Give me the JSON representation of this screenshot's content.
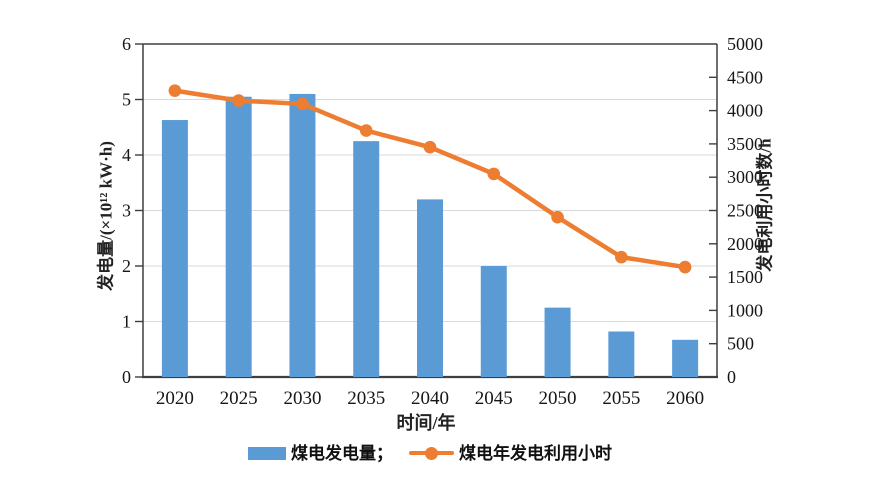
{
  "chart_data": {
    "type": "bar",
    "subtype": "combo-bar-line-dual-axis",
    "categories": [
      "2020",
      "2025",
      "2030",
      "2035",
      "2040",
      "2045",
      "2050",
      "2055",
      "2060"
    ],
    "series": [
      {
        "name": "煤电发电量",
        "type": "bar",
        "axis": "left",
        "color": "#5B9BD5",
        "values": [
          4.63,
          5.05,
          5.1,
          4.25,
          3.2,
          2.0,
          1.25,
          0.82,
          0.67
        ]
      },
      {
        "name": "煤电年发电利用小时",
        "type": "line",
        "axis": "right",
        "color": "#ED7D31",
        "values": [
          4300,
          4150,
          4100,
          3700,
          3450,
          3050,
          2400,
          1800,
          1650
        ]
      }
    ],
    "title": "",
    "xlabel": "时间/年",
    "left_axis": {
      "label": "发电量/(×10¹² kW·h)",
      "min": 0,
      "max": 6,
      "step": 1
    },
    "right_axis": {
      "label": "发电利用小时数/h",
      "min": 0,
      "max": 5000,
      "step": 500
    },
    "grid": "horizontal-at-left-axis-integers",
    "legend_position": "bottom-center",
    "legend": [
      {
        "label": "煤电发电量；"
      },
      {
        "label": "煤电年发电利用小时"
      }
    ]
  },
  "colors": {
    "bar": "#5B9BD5",
    "line": "#ED7D31",
    "gridline": "#D9D9D9",
    "axis": "#3F3F3F",
    "text": "#1a1a1a",
    "background": "#ffffff"
  }
}
